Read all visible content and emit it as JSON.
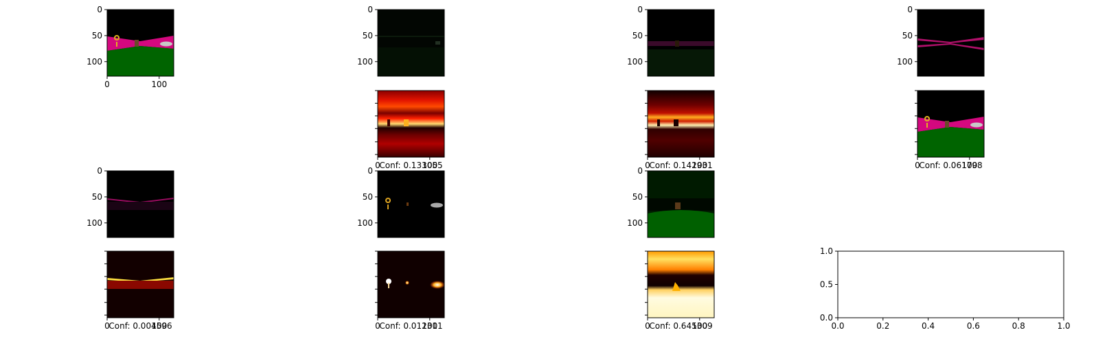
{
  "figure": {
    "description_free": true,
    "grid_rows": 4,
    "grid_cols": 4
  },
  "chart_data": [
    {
      "type": "image",
      "panel": "r1c1",
      "content": "rgb-scene",
      "xticks": [
        "0",
        "100"
      ],
      "yticks": [
        "0",
        "50",
        "100"
      ],
      "xlim": [
        0,
        128
      ],
      "ylim": [
        128,
        0
      ]
    },
    {
      "type": "image",
      "panel": "r1c2",
      "content": "dark-mask-faint",
      "xticks": [],
      "yticks": [
        "0",
        "50",
        "100"
      ],
      "ylim": [
        128,
        0
      ]
    },
    {
      "type": "image",
      "panel": "r1c3",
      "content": "dark-mask-band",
      "xticks": [],
      "yticks": [
        "0",
        "50",
        "100"
      ],
      "ylim": [
        128,
        0
      ]
    },
    {
      "type": "image",
      "panel": "r1c4",
      "content": "dark-mask-pink-lines",
      "xticks": [],
      "yticks": [
        "0",
        "50",
        "100"
      ],
      "ylim": [
        128,
        0
      ]
    },
    {
      "type": "heatmap",
      "panel": "r2c2",
      "content": "heat-broad",
      "xticks": [
        "0",
        "100"
      ],
      "caption": "Conf: 0.133055"
    },
    {
      "type": "heatmap",
      "panel": "r2c3",
      "content": "heat-band",
      "xticks": [
        "0",
        "100"
      ],
      "caption": "Conf: 0.142931"
    },
    {
      "type": "image",
      "panel": "r2c4",
      "content": "rgb-scene",
      "xticks": [
        "0",
        "100"
      ],
      "caption": "Conf: 0.061798"
    },
    {
      "type": "image",
      "panel": "r3c1",
      "content": "dark-mask-thin-pink",
      "xticks": [],
      "yticks": [
        "0",
        "50",
        "100"
      ],
      "ylim": [
        128,
        0
      ]
    },
    {
      "type": "image",
      "panel": "r3c2",
      "content": "dark-objects",
      "xticks": [],
      "yticks": [
        "0",
        "50",
        "100"
      ],
      "ylim": [
        128,
        0
      ]
    },
    {
      "type": "image",
      "panel": "r3c3",
      "content": "dark-ground",
      "xticks": [],
      "yticks": [
        "0",
        "50",
        "100"
      ],
      "ylim": [
        128,
        0
      ]
    },
    {
      "type": "heatmap",
      "panel": "r4c1",
      "content": "heat-line",
      "xticks": [
        "0",
        "100"
      ],
      "caption": "Conf: 0.004596"
    },
    {
      "type": "heatmap",
      "panel": "r4c2",
      "content": "heat-objects",
      "xticks": [
        "0",
        "100"
      ],
      "caption": "Conf: 0.012311"
    },
    {
      "type": "heatmap",
      "panel": "r4c3",
      "content": "heat-bright",
      "xticks": [
        "0",
        "100"
      ],
      "caption": "Conf: 0.645309"
    },
    {
      "type": "scatter",
      "panel": "r4c4",
      "content": "empty-axes",
      "xlim": [
        0.0,
        1.0
      ],
      "ylim": [
        0.0,
        1.0
      ],
      "xticks": [
        "0.0",
        "0.2",
        "0.4",
        "0.6",
        "0.8",
        "1.0"
      ],
      "yticks": [
        "0.0",
        "0.5",
        "1.0"
      ],
      "x": [],
      "y": []
    }
  ]
}
